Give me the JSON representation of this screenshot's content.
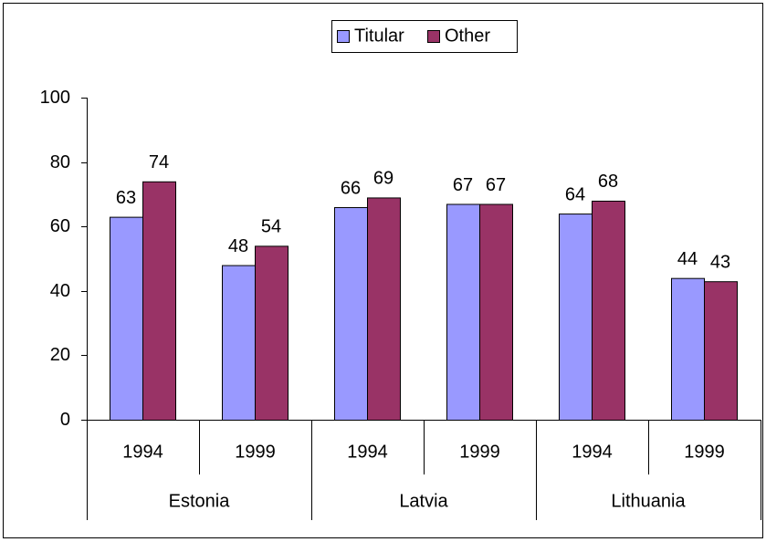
{
  "chart_data": {
    "type": "bar",
    "categories": [
      "1994",
      "1999",
      "1994",
      "1999",
      "1994",
      "1999"
    ],
    "groups": [
      "Estonia",
      "Latvia",
      "Lithuania"
    ],
    "series": [
      {
        "name": "Titular",
        "color": "#9999ff",
        "values": [
          63,
          48,
          66,
          67,
          64,
          44
        ]
      },
      {
        "name": "Other",
        "color": "#993366",
        "values": [
          74,
          54,
          69,
          67,
          68,
          43
        ]
      }
    ],
    "ylim": [
      0,
      100
    ],
    "yticks": [
      0,
      20,
      40,
      60,
      80,
      100
    ],
    "grid": false,
    "legend": "top"
  }
}
